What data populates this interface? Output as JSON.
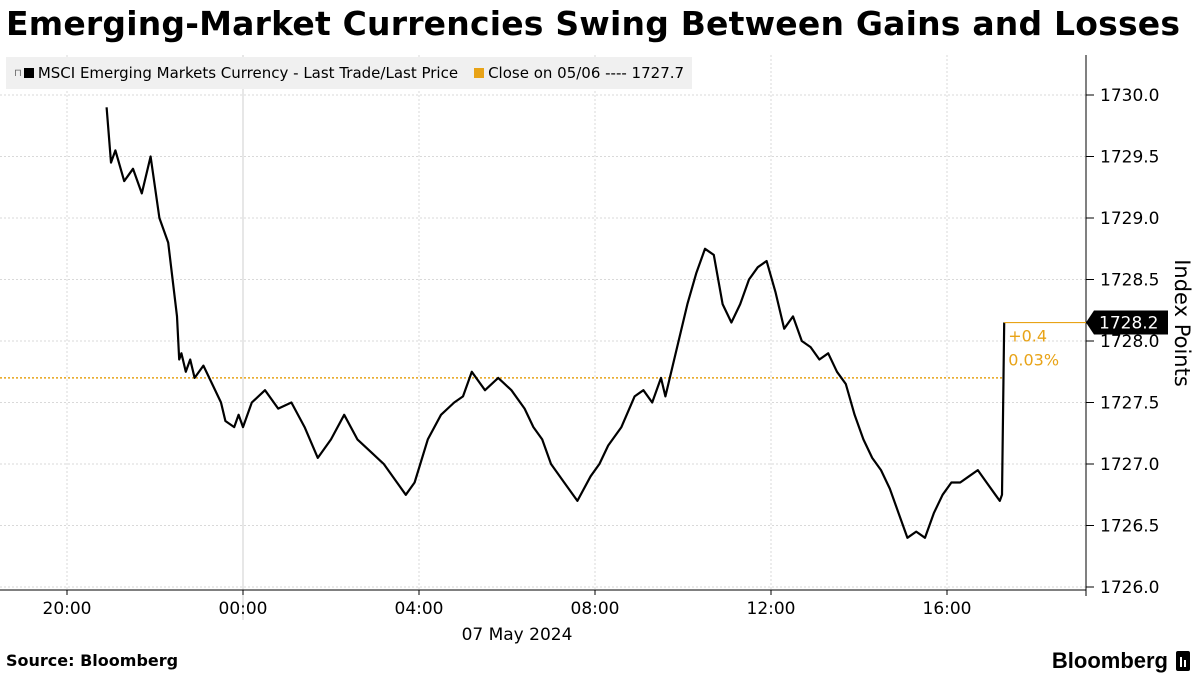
{
  "title": "Emerging-Market Currencies Swing Between Gains and Losses",
  "footer": {
    "source": "Source: Bloomberg",
    "brand": "Bloomberg"
  },
  "legend": {
    "series_label": "MSCI Emerging Markets Currency - Last Trade/Last Price",
    "close_label": "Close on 05/06 ---- 1727.7"
  },
  "colors": {
    "series": "#000000",
    "close": "#e8a317",
    "grid": "#d9d9d9",
    "legend_bg": "#f0f0f0"
  },
  "icons": {
    "brand": "bloomberg-logo-icon"
  },
  "chart_data": {
    "type": "line",
    "ylabel": "Index Points",
    "xlabel": "07 May 2024",
    "ylim": [
      1726.0,
      1730.0
    ],
    "y_ticks": [
      "1726.0",
      "1726.5",
      "1727.0",
      "1727.5",
      "1728.0",
      "1728.5",
      "1729.0",
      "1729.5",
      "1730.0"
    ],
    "x_range_hours": [
      -5,
      20
    ],
    "x_ticks": [
      {
        "hour": -4,
        "label": "20:00"
      },
      {
        "hour": 0,
        "label": "00:00"
      },
      {
        "hour": 4,
        "label": "04:00"
      },
      {
        "hour": 8,
        "label": "08:00"
      },
      {
        "hour": 12,
        "label": "12:00"
      },
      {
        "hour": 16,
        "label": "16:00"
      }
    ],
    "reference_line": {
      "name": "Close on 05/06",
      "value": 1727.7
    },
    "last_value": {
      "label": "1728.2",
      "value": 1728.15
    },
    "change": {
      "abs": "+0.4",
      "pct": "0.03%"
    },
    "series": [
      {
        "name": "MSCI Emerging Markets Currency - Last Trade/Last Price",
        "x_hours": [
          -3.1,
          -3.0,
          -2.9,
          -2.7,
          -2.5,
          -2.3,
          -2.1,
          -1.9,
          -1.7,
          -1.6,
          -1.5,
          -1.45,
          -1.4,
          -1.3,
          -1.2,
          -1.1,
          -0.9,
          -0.7,
          -0.5,
          -0.4,
          -0.2,
          -0.1,
          0.0,
          0.2,
          0.5,
          0.8,
          1.1,
          1.4,
          1.7,
          2.0,
          2.3,
          2.6,
          2.9,
          3.2,
          3.5,
          3.7,
          3.9,
          4.2,
          4.5,
          4.8,
          5.0,
          5.2,
          5.5,
          5.8,
          6.1,
          6.4,
          6.6,
          6.8,
          7.0,
          7.3,
          7.6,
          7.9,
          8.1,
          8.3,
          8.6,
          8.9,
          9.1,
          9.3,
          9.5,
          9.6,
          9.7,
          9.9,
          10.1,
          10.3,
          10.5,
          10.7,
          10.9,
          11.1,
          11.3,
          11.5,
          11.7,
          11.9,
          12.1,
          12.3,
          12.5,
          12.7,
          12.9,
          13.1,
          13.3,
          13.5,
          13.7,
          13.9,
          14.1,
          14.3,
          14.5,
          14.7,
          14.9,
          15.1,
          15.3,
          15.5,
          15.7,
          15.9,
          16.1,
          16.3,
          16.5,
          16.7,
          16.9,
          17.1,
          17.2,
          17.25,
          17.3
        ],
        "y": [
          1729.9,
          1729.45,
          1729.55,
          1729.3,
          1729.4,
          1729.2,
          1729.5,
          1729.0,
          1728.8,
          1728.5,
          1728.2,
          1727.85,
          1727.9,
          1727.75,
          1727.85,
          1727.7,
          1727.8,
          1727.65,
          1727.5,
          1727.35,
          1727.3,
          1727.4,
          1727.3,
          1727.5,
          1727.6,
          1727.45,
          1727.5,
          1727.3,
          1727.05,
          1727.2,
          1727.4,
          1727.2,
          1727.1,
          1727.0,
          1726.85,
          1726.75,
          1726.85,
          1727.2,
          1727.4,
          1727.5,
          1727.55,
          1727.75,
          1727.6,
          1727.7,
          1727.6,
          1727.45,
          1727.3,
          1727.2,
          1727.0,
          1726.85,
          1726.7,
          1726.9,
          1727.0,
          1727.15,
          1727.3,
          1727.55,
          1727.6,
          1727.5,
          1727.7,
          1727.55,
          1727.7,
          1728.0,
          1728.3,
          1728.55,
          1728.75,
          1728.7,
          1728.3,
          1728.15,
          1728.3,
          1728.5,
          1728.6,
          1728.65,
          1728.4,
          1728.1,
          1728.2,
          1728.0,
          1727.95,
          1727.85,
          1727.9,
          1727.75,
          1727.65,
          1727.4,
          1727.2,
          1727.05,
          1726.95,
          1726.8,
          1726.6,
          1726.4,
          1726.45,
          1726.4,
          1726.6,
          1726.75,
          1726.85,
          1726.85,
          1726.9,
          1726.95,
          1726.85,
          1726.75,
          1726.7,
          1726.75,
          1728.15
        ]
      }
    ],
    "grid": true,
    "legend_position": "top-left"
  }
}
